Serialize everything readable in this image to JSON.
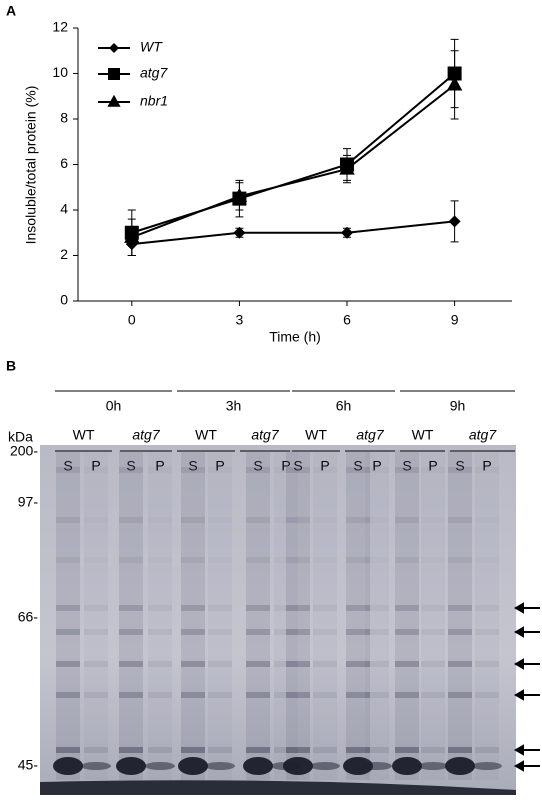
{
  "chart_data": {
    "type": "line",
    "panel_label": "A",
    "xlabel": "Time (h)",
    "ylabel": "Insoluble/total protein (%)",
    "x": [
      0,
      3,
      6,
      9
    ],
    "xlim": [
      -1.5,
      10.6
    ],
    "xticks": [
      0,
      3,
      6,
      9
    ],
    "ylim": [
      0,
      12
    ],
    "yticks": [
      0,
      2,
      4,
      6,
      8,
      10,
      12
    ],
    "legend": "upper left",
    "series": [
      {
        "name": "WT",
        "color": "#000000",
        "marker": "diamond",
        "values": [
          2.5,
          3,
          3,
          3.5
        ],
        "errors": [
          0.5,
          0.2,
          0.2,
          0.9
        ]
      },
      {
        "name": "atg7",
        "color": "#000000",
        "marker": "square",
        "values": [
          3,
          4.5,
          6,
          10
        ],
        "errors": [
          1,
          0.8,
          0.7,
          1.5
        ]
      },
      {
        "name": "nbr1",
        "color": "#000000",
        "marker": "triangle",
        "values": [
          2.8,
          4.6,
          5.8,
          9.5
        ],
        "errors": [
          0.8,
          0.6,
          0.6,
          1.5
        ]
      }
    ]
  },
  "gel": {
    "panel_label": "B",
    "unit": "kDa",
    "groups": [
      {
        "time": "0h",
        "strains": [
          {
            "name": "WT",
            "lanes": [
              "S",
              "P"
            ]
          },
          {
            "name": "atg7",
            "lanes": [
              "S",
              "P"
            ]
          }
        ]
      },
      {
        "time": "3h",
        "strains": [
          {
            "name": "WT",
            "lanes": [
              "S",
              "P"
            ]
          },
          {
            "name": "atg7",
            "lanes": [
              "S",
              "P"
            ]
          }
        ]
      },
      {
        "time": "6h",
        "strains": [
          {
            "name": "WT",
            "lanes": [
              "S",
              "P"
            ]
          },
          {
            "name": "atg7",
            "lanes": [
              "S",
              "P"
            ]
          }
        ]
      },
      {
        "time": "9h",
        "strains": [
          {
            "name": "WT",
            "lanes": [
              "S",
              "P"
            ]
          },
          {
            "name": "atg7",
            "lanes": [
              "S",
              "P"
            ]
          }
        ]
      }
    ],
    "markers": [
      "200-",
      "97-",
      "66-",
      "45-"
    ]
  }
}
